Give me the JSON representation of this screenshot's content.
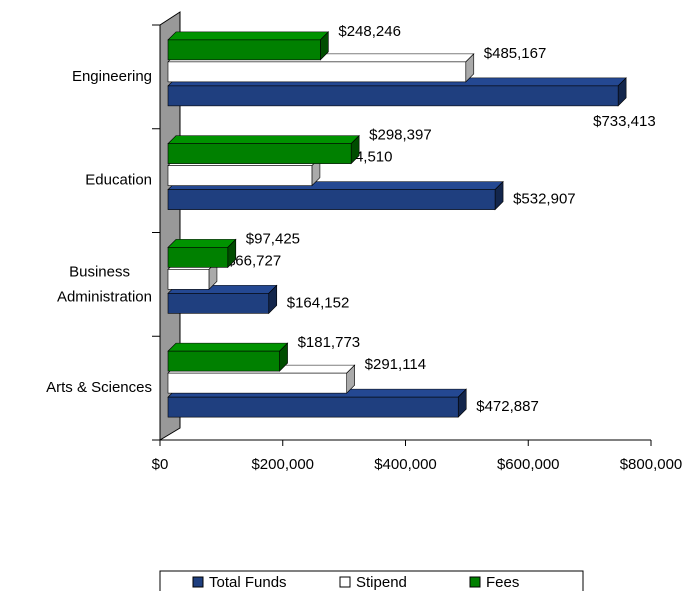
{
  "chart_data": {
    "type": "bar3d_horizontal",
    "categories": [
      "Arts & Sciences",
      "Business Administration",
      "Education",
      "Engineering"
    ],
    "series": [
      {
        "name": "Total Funds",
        "color": "#1f3f7f",
        "values": [
          472887,
          164152,
          532907,
          733413
        ],
        "value_labels": [
          "$472,887",
          "$164,152",
          "$532,907",
          "$733,413"
        ]
      },
      {
        "name": "Stipend",
        "color": "#ffffff",
        "values": [
          291114,
          66727,
          234510,
          485167
        ],
        "value_labels": [
          "$291,114",
          "$66,727",
          "$234,510",
          "$485,167"
        ]
      },
      {
        "name": "Fees",
        "color": "#008000",
        "values": [
          181773,
          97425,
          298397,
          248246
        ],
        "value_labels": [
          "$181,773",
          "$97,425",
          "$298,397",
          "$248,246"
        ]
      }
    ],
    "xlim": [
      0,
      800000
    ],
    "xticks": [
      {
        "value": 0,
        "label": "$0"
      },
      {
        "value": 200000,
        "label": "$200,000"
      },
      {
        "value": 400000,
        "label": "$400,000"
      },
      {
        "value": 600000,
        "label": "$600,000"
      },
      {
        "value": 800000,
        "label": "$800,000"
      }
    ],
    "legend": "bottom"
  }
}
